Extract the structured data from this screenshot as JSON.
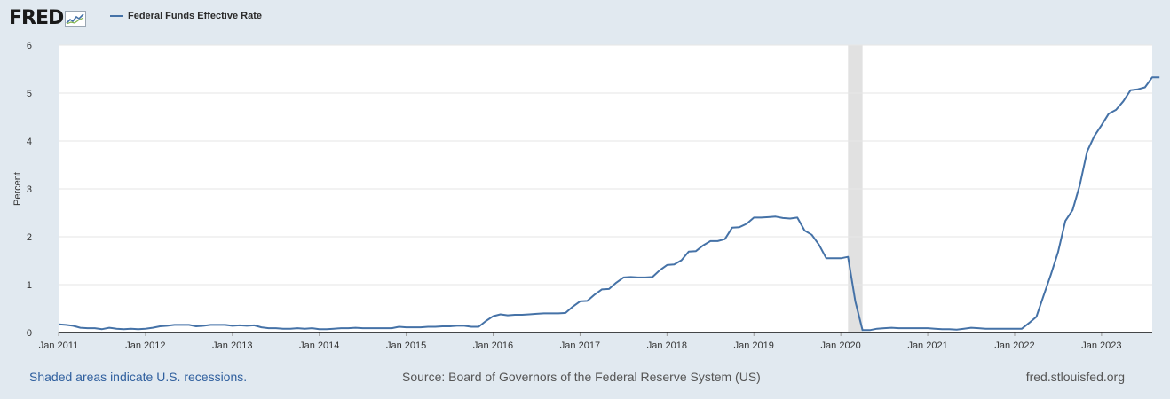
{
  "header": {
    "logo_text": "FRED",
    "legend_label": "Federal Funds Effective Rate"
  },
  "footer": {
    "recession_note": "Shaded areas indicate U.S. recessions.",
    "source": "Source: Board of Governors of the Federal Reserve System (US)",
    "site": "fred.stlouisfed.org"
  },
  "colors": {
    "line": "#4572a7",
    "recession": "#e1e1e1",
    "grid": "#e6e6e6",
    "background": "#e1e9f0",
    "plot_background": "#ffffff"
  },
  "chart_data": {
    "type": "line",
    "ylabel": "Percent",
    "ylim": [
      0,
      6
    ],
    "yticks": [
      0,
      1,
      2,
      3,
      4,
      5,
      6
    ],
    "xlim": [
      "2011-01",
      "2023-08"
    ],
    "xticks": [
      {
        "date": "2011-01",
        "label": "Jan 2011"
      },
      {
        "date": "2012-01",
        "label": "Jan 2012"
      },
      {
        "date": "2013-01",
        "label": "Jan 2013"
      },
      {
        "date": "2014-01",
        "label": "Jan 2014"
      },
      {
        "date": "2015-01",
        "label": "Jan 2015"
      },
      {
        "date": "2016-01",
        "label": "Jan 2016"
      },
      {
        "date": "2017-01",
        "label": "Jan 2017"
      },
      {
        "date": "2018-01",
        "label": "Jan 2018"
      },
      {
        "date": "2019-01",
        "label": "Jan 2019"
      },
      {
        "date": "2020-01",
        "label": "Jan 2020"
      },
      {
        "date": "2021-01",
        "label": "Jan 2021"
      },
      {
        "date": "2022-01",
        "label": "Jan 2022"
      },
      {
        "date": "2023-01",
        "label": "Jan 2023"
      }
    ],
    "grid": "horizontal",
    "legend": "top-left",
    "recessions": [
      {
        "start": "2020-02",
        "end": "2020-04"
      }
    ],
    "series": [
      {
        "name": "Federal Funds Effective Rate",
        "start": "2011-01",
        "frequency": "monthly",
        "values": [
          0.17,
          0.16,
          0.14,
          0.1,
          0.09,
          0.09,
          0.07,
          0.1,
          0.08,
          0.07,
          0.08,
          0.07,
          0.08,
          0.1,
          0.13,
          0.14,
          0.16,
          0.16,
          0.16,
          0.13,
          0.14,
          0.16,
          0.16,
          0.16,
          0.14,
          0.15,
          0.14,
          0.15,
          0.11,
          0.09,
          0.09,
          0.08,
          0.08,
          0.09,
          0.08,
          0.09,
          0.07,
          0.07,
          0.08,
          0.09,
          0.09,
          0.1,
          0.09,
          0.09,
          0.09,
          0.09,
          0.09,
          0.12,
          0.11,
          0.11,
          0.11,
          0.12,
          0.12,
          0.13,
          0.13,
          0.14,
          0.14,
          0.12,
          0.12,
          0.24,
          0.34,
          0.38,
          0.36,
          0.37,
          0.37,
          0.38,
          0.39,
          0.4,
          0.4,
          0.4,
          0.41,
          0.54,
          0.65,
          0.66,
          0.79,
          0.9,
          0.91,
          1.04,
          1.15,
          1.16,
          1.15,
          1.15,
          1.16,
          1.3,
          1.41,
          1.42,
          1.51,
          1.69,
          1.7,
          1.82,
          1.91,
          1.91,
          1.95,
          2.19,
          2.2,
          2.27,
          2.4,
          2.4,
          2.41,
          2.42,
          2.39,
          2.38,
          2.4,
          2.13,
          2.04,
          1.83,
          1.55,
          1.55,
          1.55,
          1.58,
          0.65,
          0.05,
          0.05,
          0.08,
          0.09,
          0.1,
          0.09,
          0.09,
          0.09,
          0.09,
          0.09,
          0.08,
          0.07,
          0.07,
          0.06,
          0.08,
          0.1,
          0.09,
          0.08,
          0.08,
          0.08,
          0.08,
          0.08,
          0.08,
          0.2,
          0.33,
          0.77,
          1.21,
          1.68,
          2.33,
          2.56,
          3.08,
          3.78,
          4.1,
          4.33,
          4.57,
          4.65,
          4.83,
          5.06,
          5.08,
          5.12,
          5.33,
          5.33
        ]
      }
    ]
  }
}
